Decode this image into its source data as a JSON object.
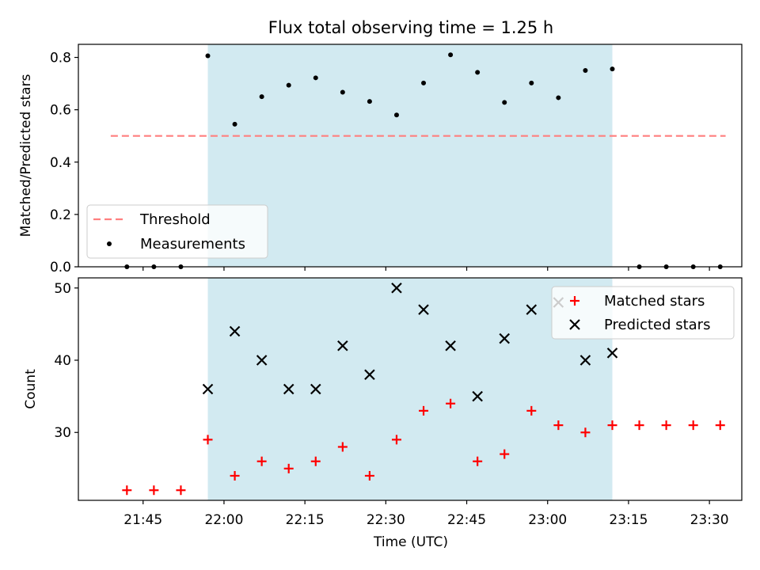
{
  "chart_data": {
    "title": "Flux total observing time = 1.25 h",
    "xlabel": "Time (UTC)",
    "x_ticks": [
      "21:45",
      "22:00",
      "22:15",
      "22:30",
      "22:45",
      "23:00",
      "23:15",
      "23:30"
    ],
    "x_tick_minutes": [
      1305,
      1320,
      1335,
      1350,
      1365,
      1380,
      1395,
      1410
    ],
    "times": [
      "21:42",
      "21:47",
      "21:52",
      "21:57",
      "22:02",
      "22:07",
      "22:12",
      "22:17",
      "22:22",
      "22:27",
      "22:32",
      "22:37",
      "22:42",
      "22:47",
      "22:52",
      "22:57",
      "23:02",
      "23:07",
      "23:12",
      "23:17",
      "23:22",
      "23:27",
      "23:32"
    ],
    "times_minutes": [
      1302,
      1307,
      1312,
      1317,
      1322,
      1327,
      1332,
      1337,
      1342,
      1347,
      1352,
      1357,
      1362,
      1367,
      1372,
      1377,
      1382,
      1387,
      1392,
      1397,
      1402,
      1407,
      1412
    ],
    "xlim_minutes": [
      1293,
      1416
    ],
    "shaded_interval": [
      "21:57",
      "23:12"
    ],
    "shaded_interval_minutes": [
      1317,
      1392
    ],
    "shade_color": "#add8e6",
    "charts": [
      {
        "type": "scatter",
        "ylabel": "Matched/Predicted stars",
        "ylim": [
          0,
          0.85
        ],
        "y_ticks": [
          "0.0",
          "0.2",
          "0.4",
          "0.6",
          "0.8"
        ],
        "y_tick_values": [
          0,
          0.2,
          0.4,
          0.6,
          0.8
        ],
        "threshold": {
          "name": "Threshold",
          "value": 0.5,
          "color": "#ff7f7f",
          "x_start_minutes": 1299,
          "x_end_minutes": 1413
        },
        "series": [
          {
            "name": "Measurements",
            "color": "#000000",
            "values": [
              0,
              0,
              0,
              0.806,
              0.545,
              0.65,
              0.694,
              0.722,
              0.667,
              0.632,
              0.58,
              0.702,
              0.81,
              0.743,
              0.628,
              0.702,
              0.646,
              0.75,
              0.756,
              0,
              0,
              0,
              0
            ]
          }
        ],
        "legend": {
          "placement": "lower-left",
          "entries": [
            "Threshold",
            "Measurements"
          ]
        }
      },
      {
        "type": "scatter",
        "ylabel": "Count",
        "ylim": [
          20.6,
          51.4
        ],
        "y_ticks": [
          "30",
          "40",
          "50"
        ],
        "y_tick_values": [
          30,
          40,
          50
        ],
        "series": [
          {
            "name": "Matched stars",
            "marker": "+",
            "color": "#ff0000",
            "values": [
              22,
              22,
              22,
              29,
              24,
              26,
              25,
              26,
              28,
              24,
              29,
              33,
              34,
              26,
              27,
              33,
              31,
              30,
              31,
              31,
              31,
              31,
              31
            ]
          },
          {
            "name": "Predicted stars",
            "marker": "x",
            "color": "#000000",
            "values": [
              null,
              null,
              null,
              36,
              44,
              40,
              36,
              36,
              42,
              38,
              50,
              47,
              42,
              35,
              43,
              47,
              48,
              40,
              41,
              null,
              null,
              null,
              null
            ]
          }
        ],
        "legend": {
          "placement": "upper-right",
          "entries": [
            "Matched stars",
            "Predicted stars"
          ]
        }
      }
    ]
  }
}
